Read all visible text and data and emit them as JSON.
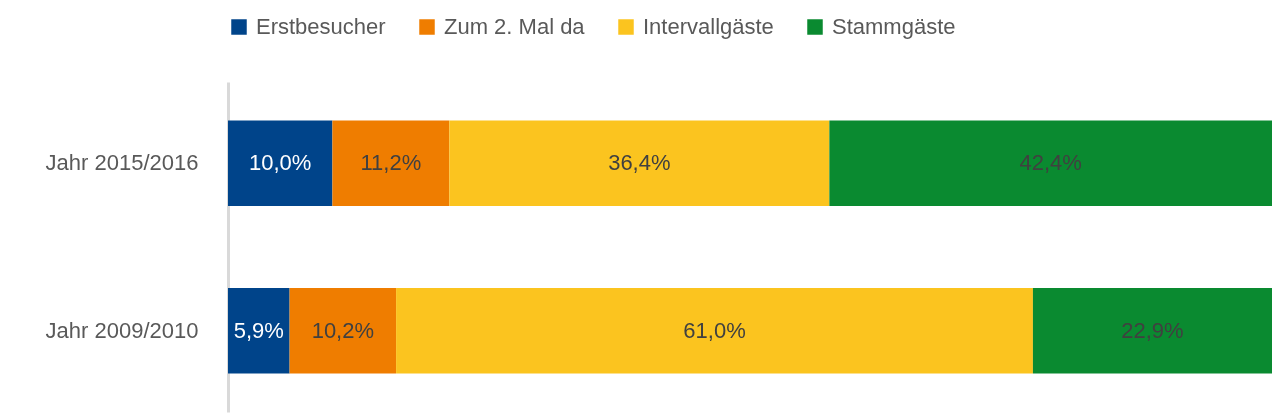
{
  "chart_data": {
    "type": "bar",
    "orientation": "horizontal",
    "stacked": true,
    "categories": [
      "Jahr 2015/2016",
      "Jahr 2009/2010"
    ],
    "series": [
      {
        "name": "Erstbesucher",
        "color": "#00448a",
        "values": [
          10.0,
          5.9
        ],
        "value_labels": [
          "10,0%",
          "5,9%"
        ]
      },
      {
        "name": "Zum 2. Mal da",
        "color": "#ef7d00",
        "values": [
          11.2,
          10.2
        ],
        "value_labels": [
          "11,2%",
          "10,2%"
        ]
      },
      {
        "name": "Intervallgäste",
        "color": "#fbc41f",
        "values": [
          36.4,
          61.0
        ],
        "value_labels": [
          "36,4%",
          "61,0%"
        ]
      },
      {
        "name": "Stammgäste",
        "color": "#0a8a30",
        "values": [
          42.4,
          22.9
        ],
        "value_labels": [
          "42,4%",
          "22,9%"
        ]
      }
    ],
    "xlim": [
      0,
      100
    ],
    "tick_labels": "y",
    "grid": false,
    "legend": "top"
  }
}
